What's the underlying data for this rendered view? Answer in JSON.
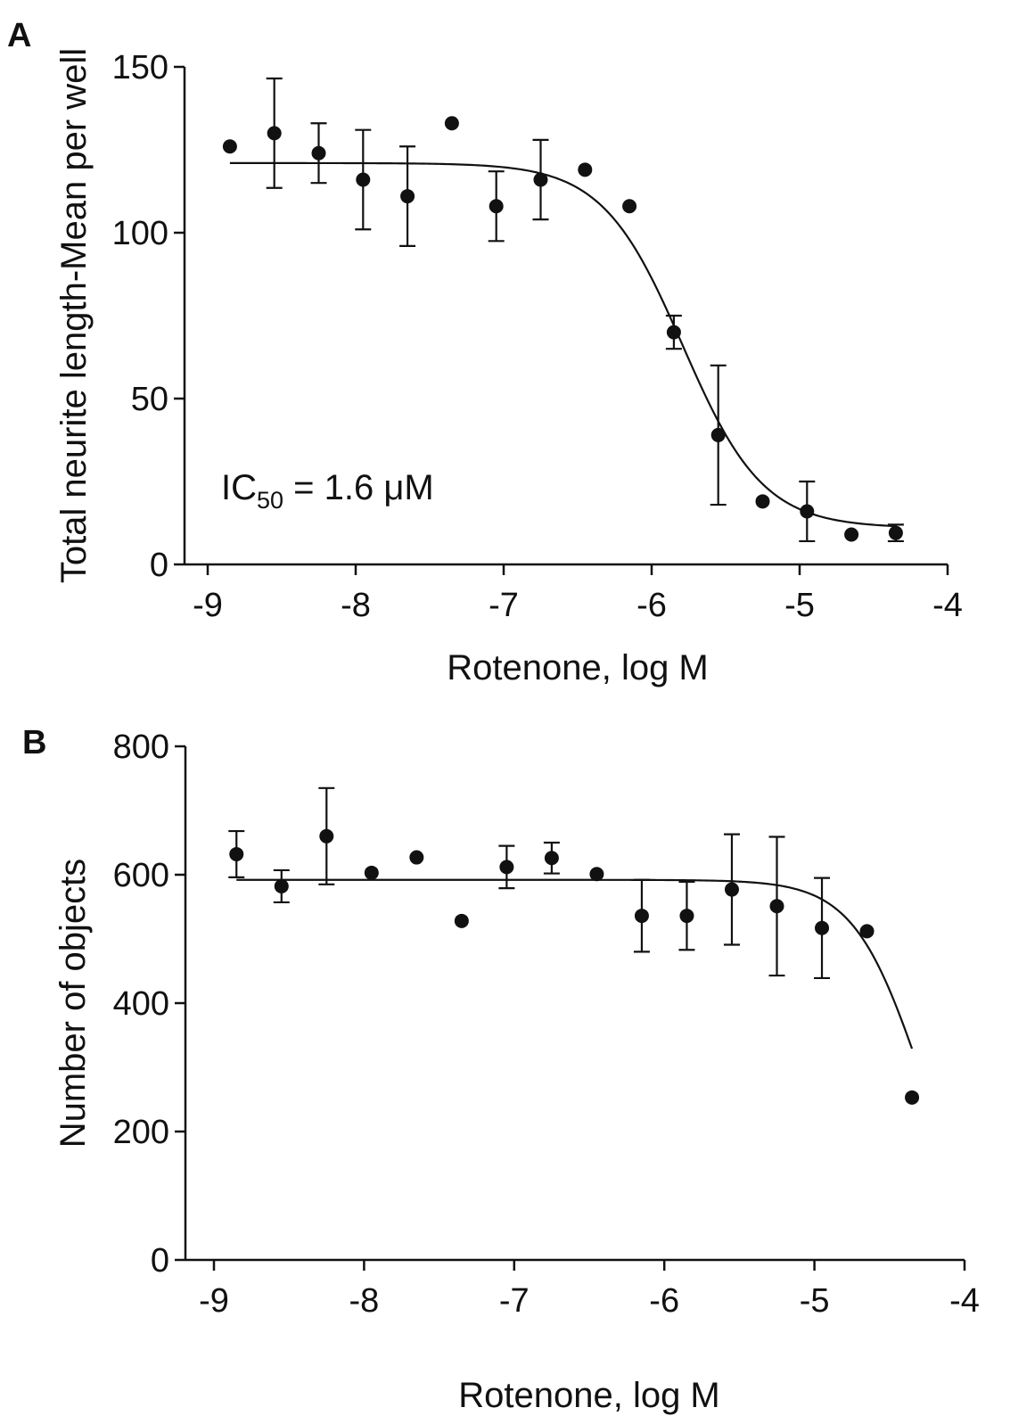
{
  "chart_data": [
    {
      "type": "scatter",
      "panel": "A",
      "xlabel": "Rotenone, log M",
      "ylabel": "Total neurite length-Mean per well",
      "xlim": [
        -9,
        -4
      ],
      "ylim": [
        0,
        150
      ],
      "xticks": [
        -9,
        -8,
        -7,
        -6,
        -5,
        -4
      ],
      "yticks": [
        0,
        50,
        100,
        150
      ],
      "xtick_labels": [
        "-9",
        "-8",
        "-7",
        "-6",
        "-5",
        "-4"
      ],
      "ytick_labels": [
        "0",
        "50",
        "100",
        "150"
      ],
      "annotation": {
        "main": "IC",
        "sub": "50",
        "rest": " = 1.6 μM"
      },
      "points": [
        {
          "x": -8.85,
          "y": 126,
          "err": null
        },
        {
          "x": -8.55,
          "y": 130,
          "err": 16.5
        },
        {
          "x": -8.25,
          "y": 124,
          "err": 9
        },
        {
          "x": -7.95,
          "y": 116,
          "err": 15
        },
        {
          "x": -7.65,
          "y": 111,
          "err": 15
        },
        {
          "x": -7.35,
          "y": 133,
          "err": null
        },
        {
          "x": -7.05,
          "y": 108,
          "err": 10.5
        },
        {
          "x": -6.75,
          "y": 116,
          "err": 12
        },
        {
          "x": -6.45,
          "y": 119,
          "err": null
        },
        {
          "x": -6.15,
          "y": 108,
          "err": null
        },
        {
          "x": -5.85,
          "y": 70,
          "err": 5
        },
        {
          "x": -5.55,
          "y": 39,
          "err": 21
        },
        {
          "x": -5.25,
          "y": 19,
          "err": null
        },
        {
          "x": -4.95,
          "y": 16,
          "err": 9
        },
        {
          "x": -4.65,
          "y": 9,
          "err": null
        },
        {
          "x": -4.35,
          "y": 9.5,
          "err": 2.5
        }
      ],
      "fit": {
        "model": "sigmoid",
        "top": 121,
        "bottom": 11,
        "log_ic50": -5.79,
        "hill": 1.6,
        "x_range": [
          -8.85,
          -4.35
        ]
      }
    },
    {
      "type": "scatter",
      "panel": "B",
      "xlabel": "Rotenone, log M",
      "ylabel": "Number of objects",
      "xlim": [
        -9,
        -4
      ],
      "ylim": [
        0,
        800
      ],
      "xticks": [
        -9,
        -8,
        -7,
        -6,
        -5,
        -4
      ],
      "yticks": [
        0,
        200,
        400,
        600,
        800
      ],
      "xtick_labels": [
        "-9",
        "-8",
        "-7",
        "-6",
        "-5",
        "-4"
      ],
      "ytick_labels": [
        "0",
        "200",
        "400",
        "600",
        "800"
      ],
      "points": [
        {
          "x": -8.85,
          "y": 632,
          "err": 36
        },
        {
          "x": -8.55,
          "y": 582,
          "err": 25
        },
        {
          "x": -8.25,
          "y": 660,
          "err": 75
        },
        {
          "x": -7.95,
          "y": 603,
          "err": null
        },
        {
          "x": -7.65,
          "y": 627,
          "err": null
        },
        {
          "x": -7.35,
          "y": 528,
          "err": null
        },
        {
          "x": -7.05,
          "y": 612,
          "err": 33
        },
        {
          "x": -6.75,
          "y": 626,
          "err": 24
        },
        {
          "x": -6.45,
          "y": 601,
          "err": null
        },
        {
          "x": -6.15,
          "y": 536,
          "err": 56
        },
        {
          "x": -5.85,
          "y": 536,
          "err": 53
        },
        {
          "x": -5.55,
          "y": 577,
          "err": 86
        },
        {
          "x": -5.25,
          "y": 551,
          "err": 108
        },
        {
          "x": -4.95,
          "y": 517,
          "err": 78
        },
        {
          "x": -4.65,
          "y": 512,
          "err": null
        },
        {
          "x": -4.35,
          "y": 253,
          "err": null
        }
      ],
      "fit": {
        "model": "sigmoid",
        "top": 592,
        "bottom": 0,
        "log_ic50": -4.3,
        "hill": 1.95,
        "x_range": [
          -8.85,
          -4.35
        ]
      }
    }
  ]
}
